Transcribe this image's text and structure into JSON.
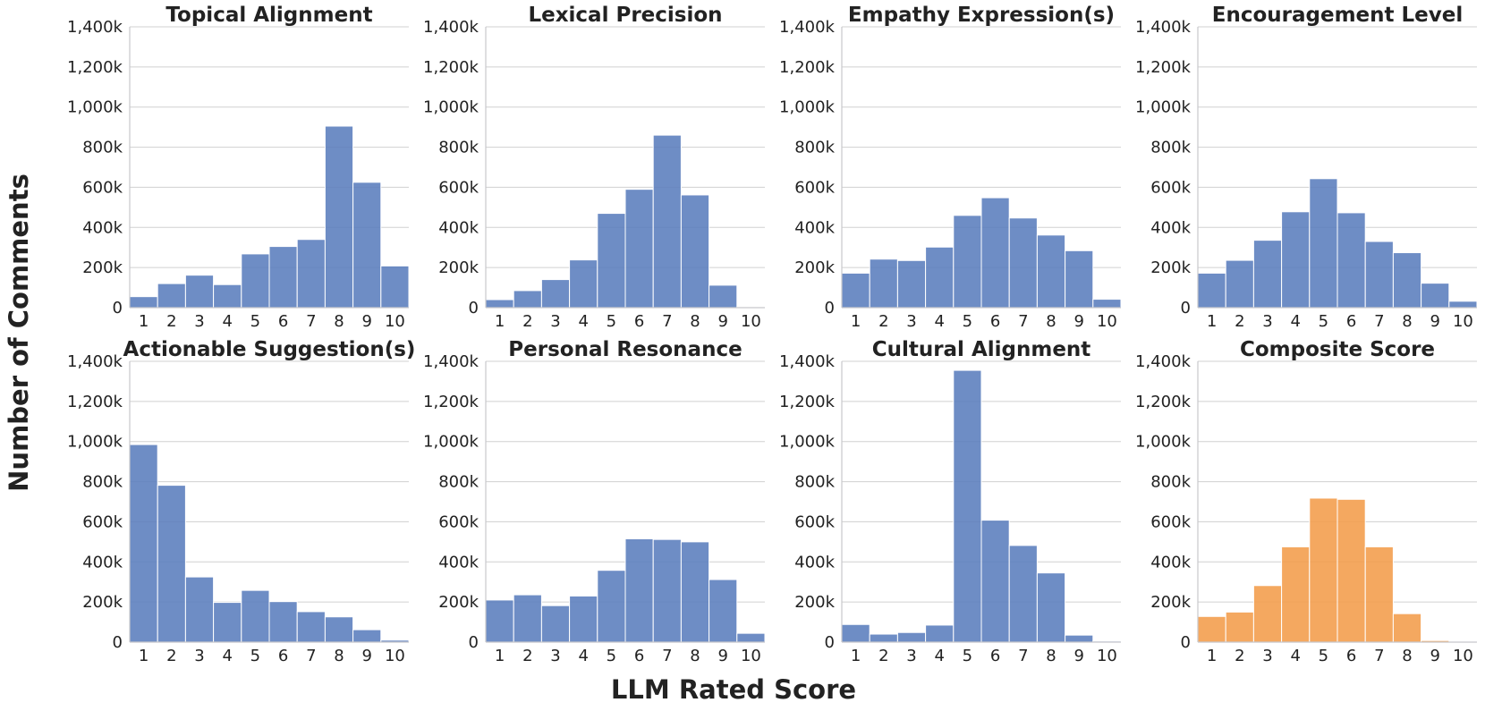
{
  "figure": {
    "ylabel": "Number of Comments",
    "xlabel": "LLM Rated Score"
  },
  "chart_data": [
    {
      "type": "bar",
      "title": "Topical Alignment",
      "categories": [
        "1",
        "2",
        "3",
        "4",
        "5",
        "6",
        "7",
        "8",
        "9",
        "10"
      ],
      "values": [
        55000,
        120000,
        162000,
        115000,
        268000,
        305000,
        340000,
        905000,
        625000,
        208000
      ],
      "ylim": [
        0,
        1400000
      ],
      "yticks": [
        0,
        200000,
        400000,
        600000,
        800000,
        1000000,
        1200000,
        1400000
      ],
      "ytick_labels": [
        "0",
        "200k",
        "400k",
        "600k",
        "800k",
        "1,000k",
        "1,200k",
        "1,400k"
      ],
      "color": "#5a7dbd"
    },
    {
      "type": "bar",
      "title": "Lexical Precision",
      "categories": [
        "1",
        "2",
        "3",
        "4",
        "5",
        "6",
        "7",
        "8",
        "9",
        "10"
      ],
      "values": [
        40000,
        85000,
        140000,
        238000,
        470000,
        590000,
        860000,
        562000,
        112000,
        3000
      ],
      "ylim": [
        0,
        1400000
      ],
      "yticks": [
        0,
        200000,
        400000,
        600000,
        800000,
        1000000,
        1200000,
        1400000
      ],
      "ytick_labels": [
        "0",
        "200k",
        "400k",
        "600k",
        "800k",
        "1,000k",
        "1,200k",
        "1,400k"
      ],
      "color": "#5a7dbd"
    },
    {
      "type": "bar",
      "title": "Empathy Expression(s)",
      "categories": [
        "1",
        "2",
        "3",
        "4",
        "5",
        "6",
        "7",
        "8",
        "9",
        "10"
      ],
      "values": [
        172000,
        242000,
        235000,
        302000,
        460000,
        548000,
        447000,
        362000,
        284000,
        42000
      ],
      "ylim": [
        0,
        1400000
      ],
      "yticks": [
        0,
        200000,
        400000,
        600000,
        800000,
        1000000,
        1200000,
        1400000
      ],
      "ytick_labels": [
        "0",
        "200k",
        "400k",
        "600k",
        "800k",
        "1,000k",
        "1,200k",
        "1,400k"
      ],
      "color": "#5a7dbd"
    },
    {
      "type": "bar",
      "title": "Encouragement Level",
      "categories": [
        "1",
        "2",
        "3",
        "4",
        "5",
        "6",
        "7",
        "8",
        "9",
        "10"
      ],
      "values": [
        172000,
        236000,
        336000,
        478000,
        643000,
        473000,
        330000,
        274000,
        122000,
        32000
      ],
      "ylim": [
        0,
        1400000
      ],
      "yticks": [
        0,
        200000,
        400000,
        600000,
        800000,
        1000000,
        1200000,
        1400000
      ],
      "ytick_labels": [
        "0",
        "200k",
        "400k",
        "600k",
        "800k",
        "1,000k",
        "1,200k",
        "1,400k"
      ],
      "color": "#5a7dbd"
    },
    {
      "type": "bar",
      "title": "Actionable Suggestion(s)",
      "categories": [
        "1",
        "2",
        "3",
        "4",
        "5",
        "6",
        "7",
        "8",
        "9",
        "10"
      ],
      "values": [
        985000,
        782000,
        325000,
        198000,
        258000,
        202000,
        152000,
        126000,
        62000,
        10000
      ],
      "ylim": [
        0,
        1400000
      ],
      "yticks": [
        0,
        200000,
        400000,
        600000,
        800000,
        1000000,
        1200000,
        1400000
      ],
      "ytick_labels": [
        "0",
        "200k",
        "400k",
        "600k",
        "800k",
        "1,000k",
        "1,200k",
        "1,400k"
      ],
      "color": "#5a7dbd"
    },
    {
      "type": "bar",
      "title": "Personal Resonance",
      "categories": [
        "1",
        "2",
        "3",
        "4",
        "5",
        "6",
        "7",
        "8",
        "9",
        "10"
      ],
      "values": [
        210000,
        236000,
        182000,
        230000,
        358000,
        515000,
        512000,
        500000,
        312000,
        44000
      ],
      "ylim": [
        0,
        1400000
      ],
      "yticks": [
        0,
        200000,
        400000,
        600000,
        800000,
        1000000,
        1200000,
        1400000
      ],
      "ytick_labels": [
        "0",
        "200k",
        "400k",
        "600k",
        "800k",
        "1,000k",
        "1,200k",
        "1,400k"
      ],
      "color": "#5a7dbd"
    },
    {
      "type": "bar",
      "title": "Cultural Alignment",
      "categories": [
        "1",
        "2",
        "3",
        "4",
        "5",
        "6",
        "7",
        "8",
        "9",
        "10"
      ],
      "values": [
        88000,
        40000,
        48000,
        85000,
        1355000,
        608000,
        482000,
        345000,
        35000,
        5000
      ],
      "ylim": [
        0,
        1400000
      ],
      "yticks": [
        0,
        200000,
        400000,
        600000,
        800000,
        1000000,
        1200000,
        1400000
      ],
      "ytick_labels": [
        "0",
        "200k",
        "400k",
        "600k",
        "800k",
        "1,000k",
        "1,200k",
        "1,400k"
      ],
      "color": "#5a7dbd"
    },
    {
      "type": "bar",
      "title": "Composite Score",
      "categories": [
        "1",
        "2",
        "3",
        "4",
        "5",
        "6",
        "7",
        "8",
        "9",
        "10"
      ],
      "values": [
        128000,
        150000,
        282000,
        475000,
        718000,
        712000,
        475000,
        142000,
        8000,
        0
      ],
      "ylim": [
        0,
        1400000
      ],
      "yticks": [
        0,
        200000,
        400000,
        600000,
        800000,
        1000000,
        1200000,
        1400000
      ],
      "ytick_labels": [
        "0",
        "200k",
        "400k",
        "600k",
        "800k",
        "1,000k",
        "1,200k",
        "1,400k"
      ],
      "color": "#f29c4a"
    }
  ]
}
